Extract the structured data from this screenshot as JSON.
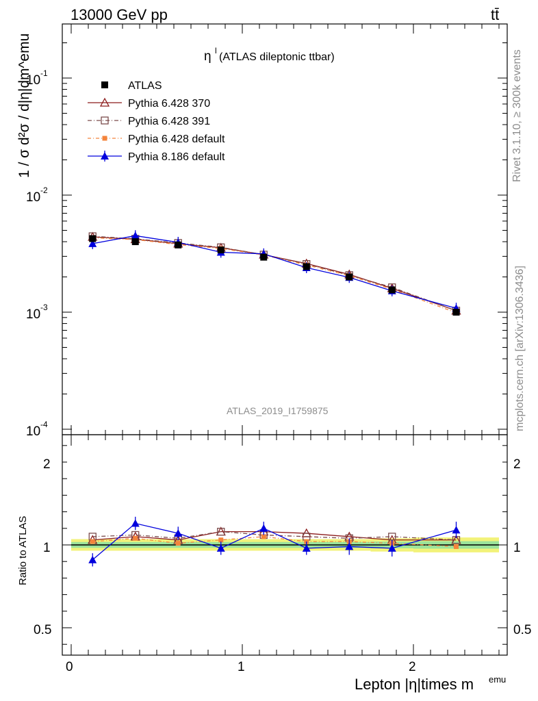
{
  "header": {
    "left": "13000 GeV pp",
    "right": "tt̄"
  },
  "side": {
    "rivet": "Rivet 3.1.10, ≥ 300k events",
    "mcplots": "mcplots.cern.ch [arXiv:1306.3436]"
  },
  "chart_data": [
    {
      "type": "line",
      "title": "η",
      "title_sup": "l",
      "title_rest": " (ATLAS dileptonic ttbar)",
      "ylabel": "1 / σ d²σ / d|η|dm^emu",
      "yscale": "log",
      "ylim": [
        0.0001,
        0.3
      ],
      "ytick_labels": [
        "10",
        "10",
        "10",
        "10"
      ],
      "ytick_exps": [
        "-1",
        "-2",
        "-3",
        "-4"
      ],
      "analysis_tag": "ATLAS_2019_I1759875",
      "x": [
        0.125,
        0.375,
        0.625,
        0.875,
        1.125,
        1.375,
        1.625,
        1.875,
        2.25
      ],
      "series": [
        {
          "name": "ATLAS",
          "color": "#000000",
          "values": [
            0.00425,
            0.004,
            0.00375,
            0.0034,
            0.00295,
            0.00245,
            0.002,
            0.00155,
            0.001
          ]
        },
        {
          "name": "Pythia 6.428 370",
          "color": "#8b1a1a",
          "values": [
            0.0044,
            0.0042,
            0.00385,
            0.00355,
            0.0031,
            0.0026,
            0.0021,
            0.0016,
            0.00103
          ]
        },
        {
          "name": "Pythia 6.428 391",
          "color": "#7a4a4a",
          "values": [
            0.00445,
            0.00423,
            0.0039,
            0.00358,
            0.0031,
            0.00258,
            0.00207,
            0.00163,
            0.00103
          ]
        },
        {
          "name": "Pythia 6.428 default",
          "color": "#f4843c",
          "values": [
            0.00432,
            0.00417,
            0.00378,
            0.0035,
            0.00308,
            0.00253,
            0.00205,
            0.00157,
            0.00099
          ]
        },
        {
          "name": "Pythia 8.186 default",
          "color": "#0000dd",
          "values": [
            0.00385,
            0.0045,
            0.00395,
            0.00325,
            0.00315,
            0.0024,
            0.00198,
            0.00152,
            0.00108
          ]
        }
      ]
    },
    {
      "type": "line",
      "ylabel": "Ratio to ATLAS",
      "xlabel": "Lepton |η|times m",
      "xlabel_sup": "emu",
      "ylim": [
        0.4,
        2.45
      ],
      "xlim": [
        -0.05,
        2.55
      ],
      "xtick_labels": [
        "0",
        "1",
        "2"
      ],
      "ytick_labels": [
        "0.5",
        "1",
        "2"
      ],
      "x": [
        0.125,
        0.375,
        0.625,
        0.875,
        1.125,
        1.375,
        1.625,
        1.875,
        2.25
      ],
      "band_halfwidth": [
        0.035,
        0.035,
        0.035,
        0.035,
        0.035,
        0.035,
        0.035,
        0.04,
        0.045
      ],
      "series": [
        {
          "name": "Pythia 6.428 370",
          "values": [
            1.03,
            1.05,
            1.03,
            1.08,
            1.08,
            1.07,
            1.05,
            1.03,
            1.03
          ]
        },
        {
          "name": "Pythia 6.428 391",
          "values": [
            1.05,
            1.06,
            1.04,
            1.08,
            1.06,
            1.05,
            1.04,
            1.05,
            1.03
          ]
        },
        {
          "name": "Pythia 6.428 default",
          "values": [
            1.02,
            1.04,
            1.01,
            1.03,
            1.05,
            1.02,
            1.02,
            1.01,
            0.99
          ]
        },
        {
          "name": "Pythia 8.186 default",
          "values": [
            0.91,
            1.13,
            1.07,
            0.98,
            1.1,
            0.98,
            0.99,
            0.98,
            1.09
          ],
          "errors": [
            0.04,
            0.04,
            0.04,
            0.04,
            0.04,
            0.04,
            0.05,
            0.05,
            0.05
          ]
        }
      ]
    }
  ]
}
